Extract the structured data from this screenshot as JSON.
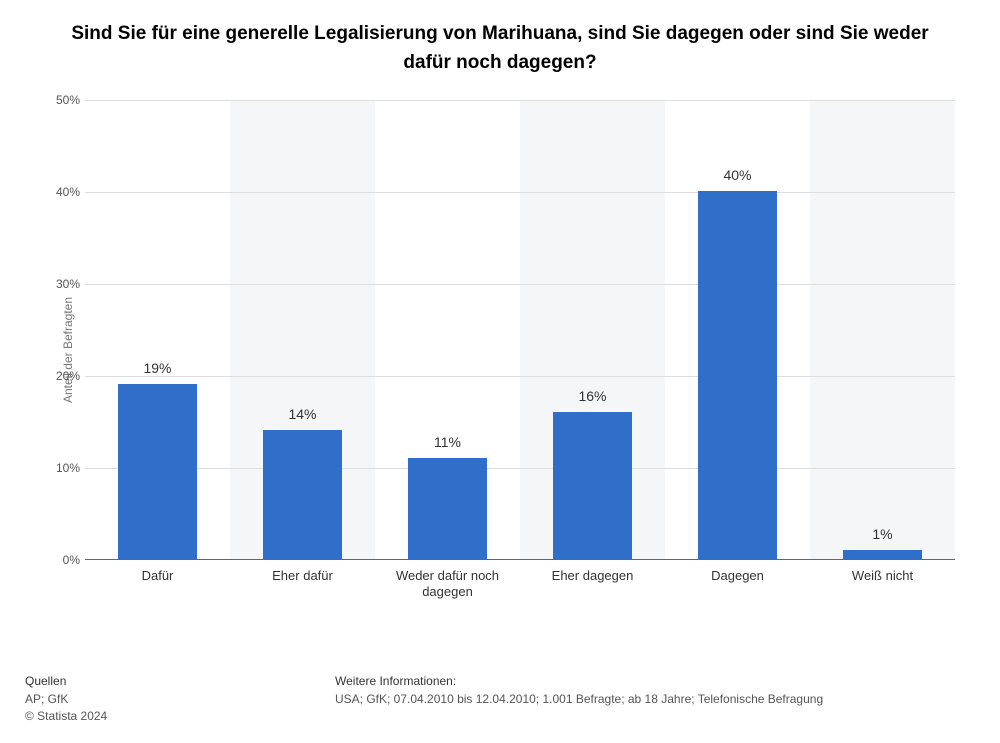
{
  "title": "Sind Sie für eine generelle Legalisierung von Marihuana, sind Sie dagegen oder sind Sie weder dafür noch dagegen?",
  "chart": {
    "type": "bar",
    "ylabel": "Anteil der Befragten",
    "ylim": [
      0,
      50
    ],
    "ytick_step": 10,
    "ytick_suffix": "%",
    "categories": [
      "Dafür",
      "Eher dafür",
      "Weder dafür noch dagegen",
      "Eher dagegen",
      "Dagegen",
      "Weiß nicht"
    ],
    "values": [
      19,
      14,
      11,
      16,
      40,
      1
    ],
    "value_suffix": "%",
    "bar_color": "#2f6fca",
    "stripe_colors": [
      "#ffffff",
      "#f5f6f7"
    ],
    "grid_color": "#dddddd",
    "axis_line_color": "#666666",
    "background_color": "#ffffff",
    "title_fontsize": 19,
    "label_fontsize": 12,
    "tick_fontsize": 12,
    "value_fontsize": 14,
    "bar_width_ratio": 0.55
  },
  "footer": {
    "sources_label": "Quellen",
    "sources_text": "AP; GfK",
    "copyright": "© Statista 2024",
    "info_label": "Weitere Informationen:",
    "info_text": "USA; GfK; 07.04.2010 bis 12.04.2010; 1.001 Befragte; ab 18 Jahre; Telefonische Befragung"
  }
}
